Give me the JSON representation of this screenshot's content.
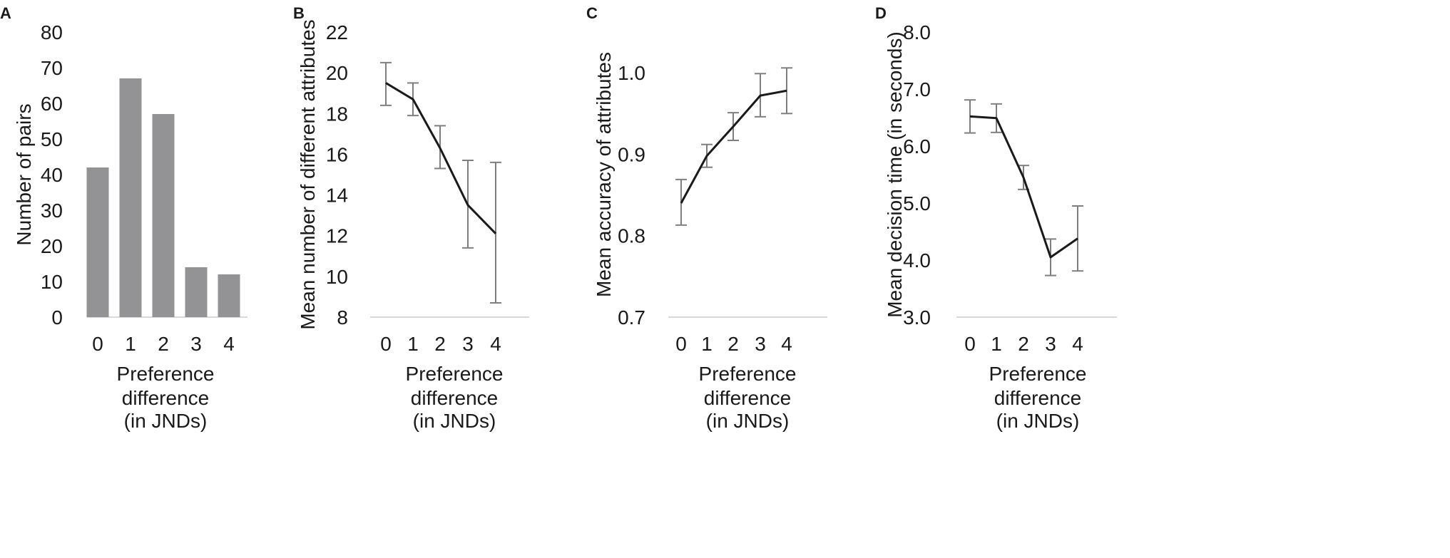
{
  "figure": {
    "colors": {
      "bar": "#939396",
      "line": "#1a1a1a",
      "error_bar": "#7f7f7f",
      "axis": "#d9d9d9",
      "text": "#1a1a1a"
    }
  },
  "chart_data": [
    {
      "panel_label": "A",
      "type": "bar",
      "categories": [
        "0",
        "1",
        "2",
        "3",
        "4"
      ],
      "values": [
        42,
        67,
        57,
        14,
        12
      ],
      "ylabel": "Number of pairs",
      "xlabel": [
        "Preference",
        "difference",
        "(in JNDs)"
      ],
      "ylim": [
        0,
        80
      ],
      "yticks": [
        "0",
        "10",
        "20",
        "30",
        "40",
        "50",
        "60",
        "70",
        "80"
      ]
    },
    {
      "panel_label": "B",
      "type": "line",
      "categories": [
        "0",
        "1",
        "2",
        "3",
        "4"
      ],
      "values": [
        19.5,
        18.7,
        16.3,
        13.5,
        12.1
      ],
      "error_low": [
        18.4,
        17.9,
        15.3,
        11.4,
        8.7
      ],
      "error_high": [
        20.5,
        19.5,
        17.4,
        15.7,
        15.6
      ],
      "ylabel": "Mean number of different attributes",
      "xlabel": [
        "Preference",
        "difference",
        "(in JNDs)"
      ],
      "ylim": [
        8,
        22
      ],
      "yticks": [
        "8",
        "10",
        "12",
        "14",
        "16",
        "18",
        "20",
        "22"
      ]
    },
    {
      "panel_label": "C",
      "type": "line",
      "categories": [
        "0",
        "1",
        "2",
        "3",
        "4"
      ],
      "values": [
        0.84,
        0.898,
        0.934,
        0.972,
        0.978
      ],
      "error_low": [
        0.813,
        0.884,
        0.917,
        0.946,
        0.95
      ],
      "error_high": [
        0.869,
        0.912,
        0.951,
        0.999,
        1.006
      ],
      "ylabel": "Mean accuracy of attributes",
      "xlabel": [
        "Preference",
        "difference",
        "(in JNDs)"
      ],
      "ylim": [
        0.7,
        1.05
      ],
      "yticks": [
        "0.7",
        "0.8",
        "0.9",
        "1.0"
      ],
      "ytick_values": [
        0.7,
        0.8,
        0.9,
        1.0
      ]
    },
    {
      "panel_label": "D",
      "type": "line",
      "categories": [
        "0",
        "1",
        "2",
        "3",
        "4"
      ],
      "values": [
        6.52,
        6.49,
        5.45,
        4.05,
        4.38
      ],
      "error_low": [
        6.23,
        6.24,
        5.24,
        3.73,
        3.81
      ],
      "error_high": [
        6.81,
        6.74,
        5.66,
        4.37,
        4.95
      ],
      "ylabel": "Mean decision time (in seconds)",
      "xlabel": [
        "Preference",
        "difference",
        "(in JNDs)"
      ],
      "ylim": [
        3,
        8
      ],
      "yticks": [
        "3.0",
        "4.0",
        "5.0",
        "6.0",
        "7.0",
        "8.0"
      ]
    }
  ]
}
